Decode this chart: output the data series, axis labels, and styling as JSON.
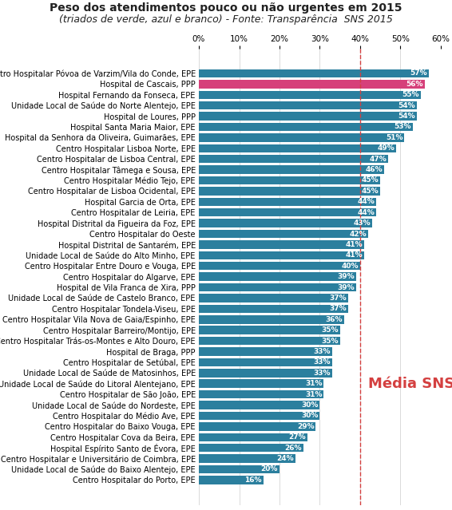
{
  "title": "Peso dos atendimentos pouco ou não urgentes em 2015",
  "subtitle": "(triados de verde, azul e branco) - Fonte: Transparência  SNS 2015",
  "categories": [
    "Centro Hospitalar Póvoa de Varzim/Vila do Conde, EPE",
    "Hospital de Cascais, PPP",
    "Hospital Fernando da Fonseca, EPE",
    "Unidade Local de Saúde do Norte Alentejo, EPE",
    "Hospital de Loures, PPP",
    "Hospital Santa Maria Maior, EPE",
    "Hospital da Senhora da Oliveira, Guimarães, EPE",
    "Centro Hospitalar Lisboa Norte, EPE",
    "Centro Hospitalar de Lisboa Central, EPE",
    "Centro Hospitalar Tâmega e Sousa, EPE",
    "Centro Hospitalar Médio Tejo, EPE",
    "Centro Hospitalar de Lisboa Ocidental, EPE",
    "Hospital Garcia de Orta, EPE",
    "Centro Hospitalar de Leiria, EPE",
    "Hospital Distrital da Figueira da Foz, EPE",
    "Centro Hospitalar do Oeste",
    "Hospital Distrital de Santarém, EPE",
    "Unidade Local de Saúde do Alto Minho, EPE",
    "Centro Hospitalar Entre Douro e Vouga, EPE",
    "Centro Hospitalar do Algarve, EPE",
    "Hospital de Vila Franca de Xira, PPP",
    "Unidade Local de Saúde de Castelo Branco, EPE",
    "Centro Hospitalar Tondela-Viseu, EPE",
    "Centro Hospitalar Vila Nova de Gaia/Espinho, EPE",
    "Centro Hospitalar Barreiro/Montijo, EPE",
    "Centro Hospitalar Trás-os-Montes e Alto Douro, EPE",
    "Hospital de Braga, PPP",
    "Centro Hospitalar de Setúbal, EPE",
    "Unidade Local de Saúde de Matosinhos, EPE",
    "Unidade Local de Saúde do Litoral Alentejano, EPE",
    "Centro Hospitalar de São João, EPE",
    "Unidade Local de Saúde do Nordeste, EPE",
    "Centro Hospitalar do Médio Ave, EPE",
    "Centro Hospitalar do Baixo Vouga, EPE",
    "Centro Hospitalar Cova da Beira, EPE",
    "Hospital Espírito Santo de Évora, EPE",
    "Centro Hospitalar e Universitário de Coimbra, EPE",
    "Unidade Local de Saúde do Baixo Alentejo, EPE",
    "Centro Hospitalar do Porto, EPE"
  ],
  "values": [
    57,
    56,
    55,
    54,
    54,
    53,
    51,
    49,
    47,
    46,
    45,
    45,
    44,
    44,
    43,
    42,
    41,
    41,
    40,
    39,
    39,
    37,
    37,
    36,
    35,
    35,
    33,
    33,
    33,
    31,
    31,
    30,
    30,
    29,
    27,
    26,
    24,
    20,
    16
  ],
  "bar_colors": [
    "#2b7f9e",
    "#d6407a",
    "#2b7f9e",
    "#2b7f9e",
    "#2b7f9e",
    "#2b7f9e",
    "#2b7f9e",
    "#2b7f9e",
    "#2b7f9e",
    "#2b7f9e",
    "#2b7f9e",
    "#2b7f9e",
    "#2b7f9e",
    "#2b7f9e",
    "#2b7f9e",
    "#2b7f9e",
    "#2b7f9e",
    "#2b7f9e",
    "#2b7f9e",
    "#2b7f9e",
    "#2b7f9e",
    "#2b7f9e",
    "#2b7f9e",
    "#2b7f9e",
    "#2b7f9e",
    "#2b7f9e",
    "#2b7f9e",
    "#2b7f9e",
    "#2b7f9e",
    "#2b7f9e",
    "#2b7f9e",
    "#2b7f9e",
    "#2b7f9e",
    "#2b7f9e",
    "#2b7f9e",
    "#2b7f9e",
    "#2b7f9e",
    "#2b7f9e",
    "#2b7f9e"
  ],
  "media_sns_value": 40,
  "media_sns_label": "Média SNS",
  "media_sns_row": 29,
  "xlim": [
    0,
    60
  ],
  "xticks": [
    0,
    10,
    20,
    30,
    40,
    50,
    60
  ],
  "background_color": "#ffffff",
  "bar_text_color": "#ffffff",
  "title_fontsize": 10,
  "subtitle_fontsize": 9,
  "tick_fontsize": 7.5,
  "bar_fontsize": 6.5,
  "ylabel_fontsize": 7.0,
  "media_line_color": "#d44040",
  "media_label_fontsize": 13
}
